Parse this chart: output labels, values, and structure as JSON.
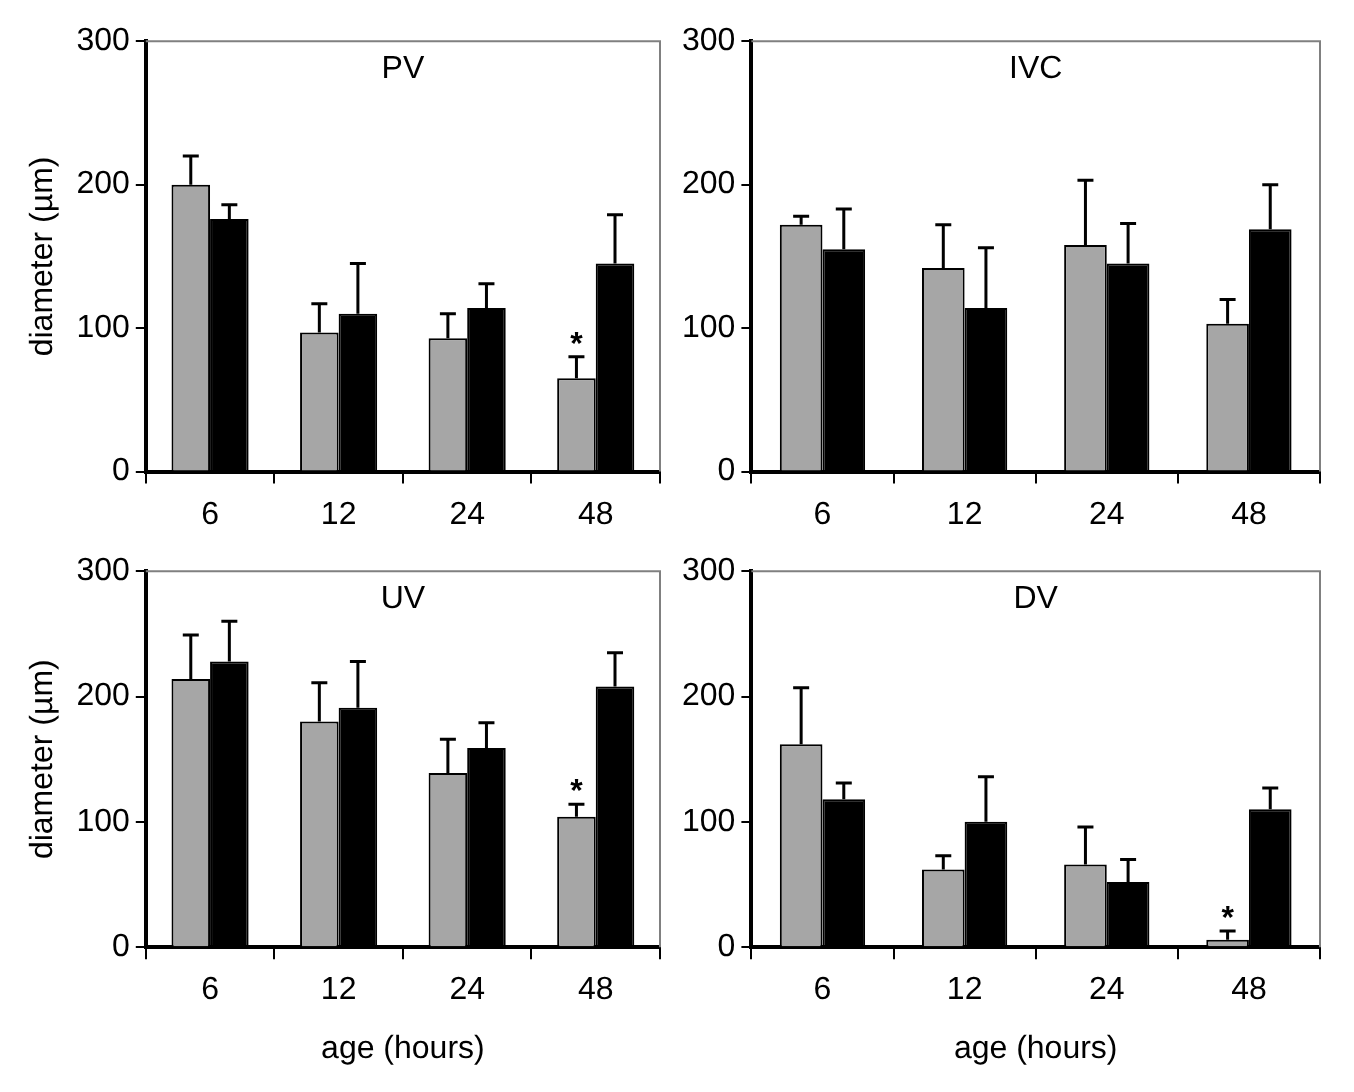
{
  "chart_data": [
    {
      "type": "bar",
      "title": "PV",
      "ylabel": "diameter (µm)",
      "categories": [
        "6",
        "12",
        "24",
        "48"
      ],
      "ylim": [
        0,
        300
      ],
      "yticks": [
        0,
        100,
        200,
        300
      ],
      "grid": false,
      "series": [
        {
          "color": "#a6a6a6",
          "values": [
            200,
            97,
            93,
            65
          ],
          "errors": [
            [
              200,
              220
            ],
            [
              97,
              117
            ],
            [
              93,
              110
            ],
            [
              65,
              80
            ]
          ]
        },
        {
          "color": "#000000",
          "values": [
            176,
            110,
            114,
            145
          ],
          "errors": [
            [
              176,
              186
            ],
            [
              110,
              145
            ],
            [
              114,
              131
            ],
            [
              145,
              179
            ]
          ]
        }
      ],
      "annotations": [
        {
          "text": "*",
          "x": "48",
          "y": 80
        }
      ]
    },
    {
      "type": "bar",
      "title": "IVC",
      "categories": [
        "6",
        "12",
        "24",
        "48"
      ],
      "ylim": [
        0,
        300
      ],
      "yticks": [
        0,
        100,
        200,
        300
      ],
      "grid": false,
      "series": [
        {
          "color": "#a6a6a6",
          "values": [
            172,
            142,
            158,
            103
          ],
          "errors": [
            [
              172,
              178
            ],
            [
              142,
              172
            ],
            [
              158,
              203
            ],
            [
              103,
              120
            ]
          ]
        },
        {
          "color": "#000000",
          "values": [
            155,
            114,
            145,
            169
          ],
          "errors": [
            [
              155,
              183
            ],
            [
              114,
              156
            ],
            [
              145,
              173
            ],
            [
              169,
              200
            ]
          ]
        }
      ]
    },
    {
      "type": "bar",
      "title": "UV",
      "ylabel": "diameter (µm)",
      "xlabel": "age (hours)",
      "categories": [
        "6",
        "12",
        "24",
        "48"
      ],
      "ylim": [
        0,
        300
      ],
      "yticks": [
        0,
        100,
        200,
        300
      ],
      "grid": false,
      "series": [
        {
          "color": "#a6a6a6",
          "values": [
            214,
            180,
            139,
            104
          ],
          "errors": [
            [
              214,
              249
            ],
            [
              180,
              211
            ],
            [
              139,
              166
            ],
            [
              104,
              114
            ]
          ]
        },
        {
          "color": "#000000",
          "values": [
            228,
            191,
            159,
            208
          ],
          "errors": [
            [
              228,
              260
            ],
            [
              191,
              228
            ],
            [
              159,
              179
            ],
            [
              208,
              235
            ]
          ]
        }
      ],
      "annotations": [
        {
          "text": "*",
          "x": "48",
          "y": 114
        }
      ]
    },
    {
      "type": "bar",
      "title": "DV",
      "xlabel": "age (hours)",
      "categories": [
        "6",
        "12",
        "24",
        "48"
      ],
      "ylim": [
        0,
        300
      ],
      "yticks": [
        0,
        100,
        200,
        300
      ],
      "grid": false,
      "series": [
        {
          "color": "#a6a6a6",
          "values": [
            162,
            62,
            66,
            6
          ],
          "errors": [
            [
              162,
              207
            ],
            [
              62,
              73
            ],
            [
              66,
              96
            ],
            [
              6,
              13
            ]
          ]
        },
        {
          "color": "#000000",
          "values": [
            118,
            100,
            52,
            110
          ],
          "errors": [
            [
              118,
              131
            ],
            [
              100,
              136
            ],
            [
              52,
              70
            ],
            [
              110,
              127
            ]
          ]
        }
      ],
      "annotations": [
        {
          "text": "*",
          "x": "48",
          "y": 13
        }
      ]
    }
  ]
}
